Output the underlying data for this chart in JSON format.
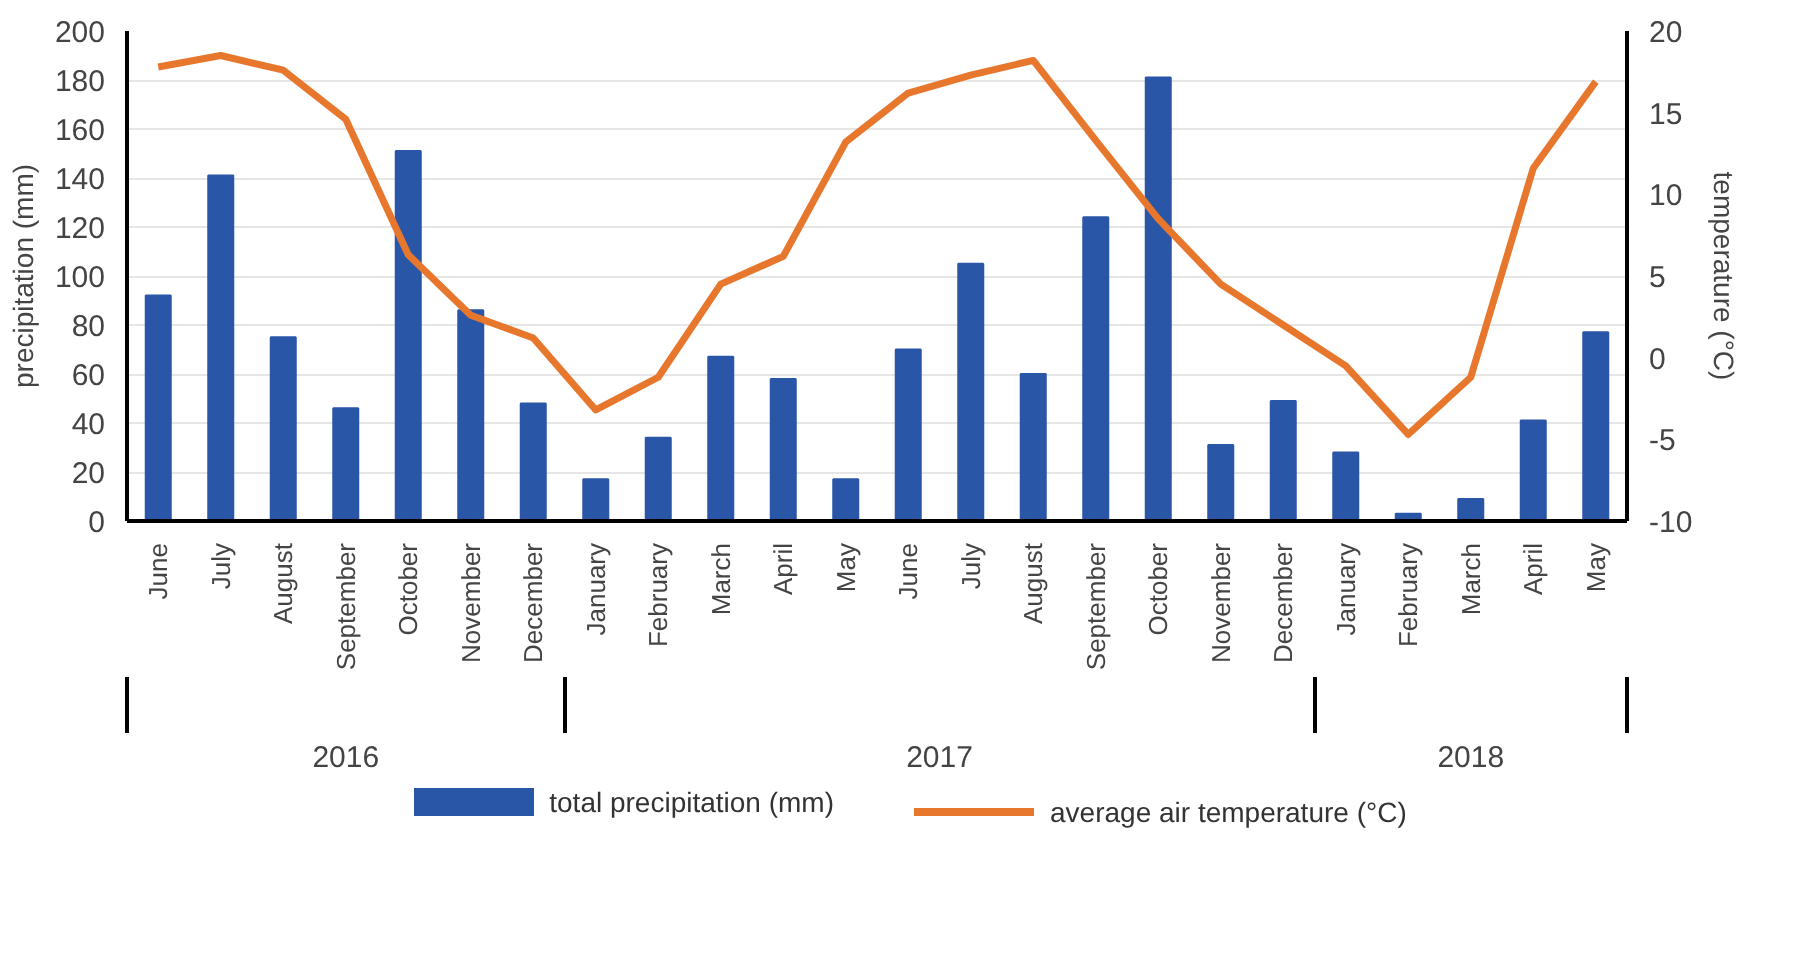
{
  "chart_data": {
    "type": "bar",
    "xlabel": null,
    "ylabel": "precipitation (mm)",
    "y2label": "temperature (°C)",
    "categories": [
      "June",
      "July",
      "August",
      "September",
      "October",
      "November",
      "December",
      "January",
      "February",
      "March",
      "April",
      "May",
      "June",
      "July",
      "August",
      "September",
      "October",
      "November",
      "December",
      "January",
      "February",
      "March",
      "April",
      "May"
    ],
    "series": [
      {
        "name": "total precipitation (mm)",
        "color": "#2a56a8",
        "values": [
          92,
          141,
          75,
          46,
          151,
          86,
          48,
          17,
          34,
          67,
          58,
          17,
          70,
          105,
          60,
          124,
          181,
          31,
          49,
          28,
          3,
          9,
          41,
          77
        ]
      },
      {
        "name": "average air temperature (°C)",
        "type": "line",
        "axis": "y2",
        "color": "#e8772e",
        "values": [
          17.8,
          18.5,
          17.6,
          14.6,
          6.3,
          2.6,
          1.2,
          -3.2,
          -1.2,
          4.5,
          6.2,
          13.2,
          16.2,
          17.3,
          18.2,
          13.3,
          8.5,
          4.5,
          2.0,
          -0.5,
          -4.7,
          -1.2,
          11.6,
          16.9
        ]
      }
    ],
    "annotations": [
      "2016",
      "2017",
      "2018"
    ],
    "ylim": [
      0,
      200
    ],
    "yticks": [
      0,
      20,
      40,
      60,
      80,
      100,
      120,
      140,
      160,
      180,
      200
    ],
    "y2lim": [
      -10,
      20
    ],
    "y2ticks": [
      -10,
      -5,
      0,
      5,
      10,
      15,
      20
    ],
    "grid": "y",
    "legend": "bottom"
  }
}
